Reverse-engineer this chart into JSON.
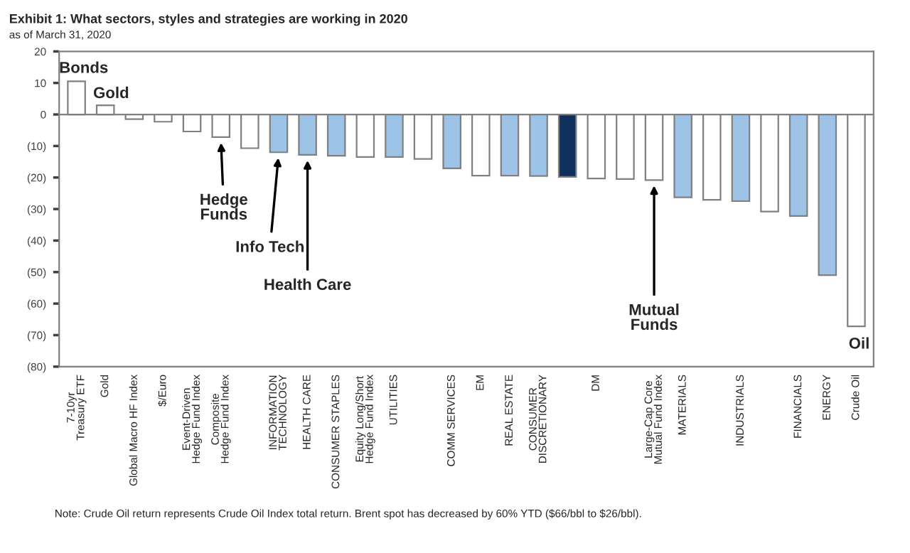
{
  "chart_data": {
    "type": "bar",
    "title": "Exhibit 1: What sectors, styles and strategies are working in 2020",
    "subtitle": "as of March 31, 2020",
    "categories": [
      "7-10yr\nTreasury ETF",
      "Gold",
      "Global Macro HF Index",
      "$/Euro",
      "Event-Driven\nHedge Fund Index",
      "Composite\nHedge Fund Index",
      null,
      "INFORMATION\nTECHNOLOGY",
      "HEALTH CARE",
      "CONSUMER STAPLES",
      "Equity Long/Short\nHedge Fund Index",
      "UTILITIES",
      null,
      "COMM SERVICES",
      "EM",
      "REAL ESTATE",
      "CONSUMER\nDISCRETIONARY",
      null,
      "DM",
      null,
      "Large-Cap Core\nMutual Fund Index",
      "MATERIALS",
      null,
      "INDUSTRIALS",
      null,
      "FINANCIALS",
      "ENERGY",
      "Crude Oil"
    ],
    "values": [
      10.5,
      2.9,
      -1.5,
      -2.3,
      -5.4,
      -7.2,
      -10.7,
      -12.0,
      -12.8,
      -13.1,
      -13.5,
      -13.5,
      -14.1,
      -17.1,
      -19.4,
      -19.4,
      -19.5,
      -19.8,
      -20.3,
      -20.5,
      -20.8,
      -26.3,
      -27.1,
      -27.5,
      -30.8,
      -32.2,
      -51.0,
      -67.2
    ],
    "colors": [
      "#ffffff",
      "#ffffff",
      "#ffffff",
      "#ffffff",
      "#ffffff",
      "#ffffff",
      "#ffffff",
      "#9dc3e6",
      "#9dc3e6",
      "#9dc3e6",
      "#ffffff",
      "#9dc3e6",
      "#ffffff",
      "#9dc3e6",
      "#ffffff",
      "#9dc3e6",
      "#9dc3e6",
      "#0f2f5c",
      "#ffffff",
      "#ffffff",
      "#ffffff",
      "#9dc3e6",
      "#ffffff",
      "#9dc3e6",
      "#ffffff",
      "#9dc3e6",
      "#9dc3e6",
      "#ffffff"
    ],
    "ylim": [
      -80,
      20
    ],
    "yticks": [
      {
        "value": -80,
        "label": "(80)"
      },
      {
        "value": -70,
        "label": "(70)"
      },
      {
        "value": -60,
        "label": "(60)"
      },
      {
        "value": -50,
        "label": "(50)"
      },
      {
        "value": -40,
        "label": "(40)"
      },
      {
        "value": -30,
        "label": "(30)"
      },
      {
        "value": -20,
        "label": "(20)"
      },
      {
        "value": -10,
        "label": "(10)"
      },
      0,
      10,
      20
    ],
    "ref_lines": [
      {
        "axis": "y",
        "value": 0,
        "color": "#7f7f7f"
      }
    ],
    "grid": false,
    "legend": false,
    "annotations": [
      {
        "text": "Bonds",
        "x": "7-10yr\nTreasury ETF",
        "y": 10.5
      },
      {
        "text": "Gold",
        "x": "Gold",
        "y": 2.9
      },
      {
        "text": "Hedge\nFunds",
        "x": "Composite\nHedge Fund Index",
        "y": -7.2
      },
      {
        "text": "Info Tech",
        "x": "INFORMATION\nTECHNOLOGY",
        "y": -12.0
      },
      {
        "text": "Health Care",
        "x": "HEALTH CARE",
        "y": -12.8
      },
      {
        "text": "Mutual\nFunds",
        "x": "Large-Cap Core\nMutual Fund Index",
        "y": -20.8
      },
      {
        "text": "Oil",
        "x": "Crude Oil",
        "y": -67.2
      },
      "Note: Crude Oil return represents Crude Oil Index total return. Brent spot has decreased by 60% YTD ($66/bbl to $26/bbl)."
    ]
  }
}
